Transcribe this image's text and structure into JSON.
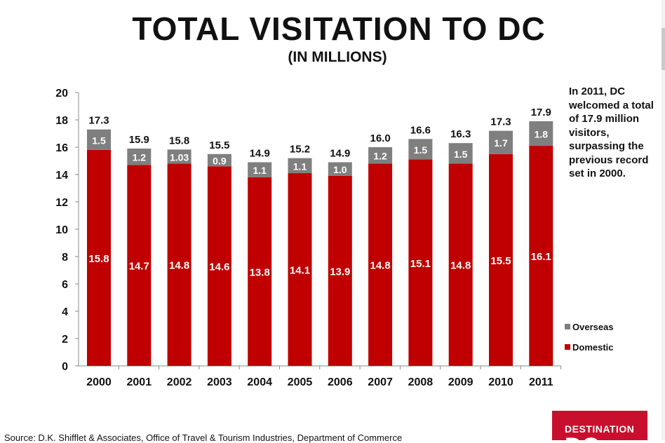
{
  "header": {
    "title": "TOTAL VISITATION TO DC",
    "subtitle": "(IN MILLIONS)"
  },
  "annotation": "In 2011, DC welcomed a total of 17.9 million visitors, surpassing the previous record set  in 2000.",
  "source": "Source:  D.K. Shifflet & Associates, Office of Travel & Tourism Industries, Department of Commerce",
  "logo": {
    "text": "DESTINATION",
    "big": "DC"
  },
  "colors": {
    "domestic": "#c00000",
    "overseas": "#7f7f7f",
    "text": "#111111"
  },
  "chart_data": {
    "type": "bar",
    "stacked": true,
    "categories": [
      "2000",
      "2001",
      "2002",
      "2003",
      "2004",
      "2005",
      "2006",
      "2007",
      "2008",
      "2009",
      "2010",
      "2011"
    ],
    "series": [
      {
        "name": "Domestic",
        "values": [
          15.8,
          14.7,
          14.8,
          14.6,
          13.8,
          14.1,
          13.9,
          14.8,
          15.1,
          14.8,
          15.5,
          16.1
        ],
        "labels": [
          "15.8",
          "14.7",
          "14.8",
          "14.6",
          "13.8",
          "14.1",
          "13.9",
          "14.8",
          "15.1",
          "14.8",
          "15.5",
          "16.1"
        ]
      },
      {
        "name": "Overseas",
        "values": [
          1.5,
          1.2,
          1.03,
          0.9,
          1.1,
          1.1,
          1.0,
          1.2,
          1.5,
          1.5,
          1.7,
          1.8
        ],
        "labels": [
          "1.5",
          "1.2",
          "1.03",
          "0.9",
          "1.1",
          "1.1",
          "1.0",
          "1.2",
          "1.5",
          "1.5",
          "1.7",
          "1.8"
        ]
      }
    ],
    "totals": [
      17.3,
      15.9,
      15.8,
      15.5,
      14.9,
      15.2,
      14.9,
      16.0,
      16.6,
      16.3,
      17.3,
      17.9
    ],
    "total_labels": [
      "17.3",
      "15.9",
      "15.8",
      "15.5",
      "14.9",
      "15.2",
      "14.9",
      "16.0",
      "16.6",
      "16.3",
      "17.3",
      "17.9"
    ],
    "ylim": [
      0,
      20
    ],
    "yticks": [
      "0",
      "2",
      "4",
      "6",
      "8",
      "10",
      "12",
      "14",
      "16",
      "18",
      "20"
    ],
    "legend": [
      "Overseas",
      "Domestic"
    ],
    "legend_position": "bottom-right",
    "grid": false
  }
}
